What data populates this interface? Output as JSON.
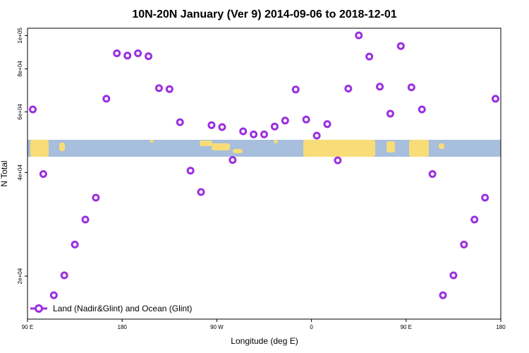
{
  "chart_data": {
    "type": "scatter",
    "title": "10N-20N January (Ver 9)   2014-09-06 to 2018-12-01",
    "xlabel": "Longitude (deg E)",
    "ylabel": "N Total",
    "xlim": [
      -90,
      180
    ],
    "ylim": [
      15000,
      105000
    ],
    "x_ticks": [
      {
        "value": -90,
        "label": "90 E"
      },
      {
        "value": -36,
        "label": "180"
      },
      {
        "value": 18,
        "label": "90 W"
      },
      {
        "value": 72,
        "label": "0"
      },
      {
        "value": 126,
        "label": "90 E"
      },
      {
        "value": 180,
        "label": "180"
      }
    ],
    "y_ticks": [
      {
        "value": 20000,
        "label": "2e+04"
      },
      {
        "value": 40000,
        "label": "4e+04"
      },
      {
        "value": 60000,
        "label": "6e+04"
      },
      {
        "value": 80000,
        "label": "8e+04"
      },
      {
        "value": 100000,
        "label": "1e+05"
      }
    ],
    "map_band": {
      "lat_min": 10,
      "lat_max": 20,
      "ocean_color": "#a7bedc",
      "land_color": "#f8dc78"
    },
    "series": [
      {
        "name": "Land (Nadir&Glint) and Ocean (Glint)",
        "color": "#9b2fe0",
        "x": [
          -87,
          -81,
          -75,
          -69,
          -63,
          -57,
          -51,
          -45,
          -39,
          -33,
          -27,
          -21,
          -15,
          -9,
          -3,
          3,
          9,
          15,
          21,
          27,
          33,
          39,
          45,
          51,
          57,
          63,
          69,
          75,
          81,
          87,
          93,
          99,
          105,
          111,
          117,
          123,
          129,
          135,
          141,
          147,
          153,
          159,
          165,
          171,
          177
        ],
        "y": [
          61000,
          39600,
          17600,
          20100,
          24700,
          29200,
          33800,
          65500,
          88800,
          87400,
          88800,
          87100,
          70300,
          69900,
          56000,
          40500,
          35100,
          54900,
          54200,
          43500,
          52700,
          51600,
          51600,
          54400,
          56600,
          69700,
          57000,
          51200,
          55300,
          43400,
          70100,
          100100,
          86900,
          71000,
          59300,
          93200,
          70700,
          61000,
          39600,
          17600,
          20100,
          24700,
          29200,
          33800,
          65500
        ]
      }
    ],
    "legend": {
      "position": "bottom-left"
    }
  }
}
